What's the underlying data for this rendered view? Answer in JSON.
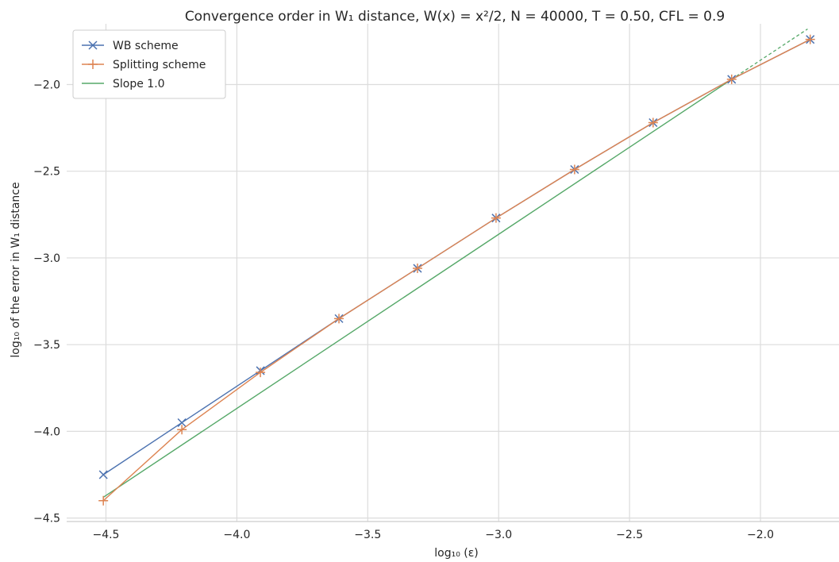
{
  "chart_data": {
    "type": "line",
    "title": "Convergence order in W₁ distance, W(x) = x²/2, N = 40000, T = 0.50, CFL = 0.9",
    "xlabel": "log₁₀ (ε)",
    "ylabel": "log₁₀ of the error in W₁ distance",
    "xlim": [
      -4.65,
      -1.7
    ],
    "ylim": [
      -4.52,
      -1.65
    ],
    "xticks": [
      -4.5,
      -4.0,
      -3.5,
      -3.0,
      -2.5,
      -2.0
    ],
    "xtick_labels": [
      "−4.5",
      "−4.0",
      "−3.5",
      "−3.0",
      "−2.5",
      "−2.0"
    ],
    "yticks": [
      -4.5,
      -4.0,
      -3.5,
      -3.0,
      -2.5,
      -2.0
    ],
    "ytick_labels": [
      "−4.5",
      "−4.0",
      "−3.5",
      "−3.0",
      "−2.5",
      "−2.0"
    ],
    "grid": true,
    "legend_position": "top-left",
    "series": [
      {
        "name": "WB scheme",
        "color": "#4c72b0",
        "marker": "x",
        "x": [
          -4.51,
          -4.21,
          -3.91,
          -3.61,
          -3.31,
          -3.01,
          -2.71,
          -2.41,
          -2.11,
          -1.81
        ],
        "y": [
          -4.25,
          -3.95,
          -3.65,
          -3.35,
          -3.06,
          -2.77,
          -2.49,
          -2.22,
          -1.97,
          -1.74
        ]
      },
      {
        "name": "Splitting scheme",
        "color": "#dd8452",
        "marker": "+",
        "x": [
          -4.51,
          -4.21,
          -3.91,
          -3.61,
          -3.31,
          -3.01,
          -2.71,
          -2.41,
          -2.11,
          -1.81
        ],
        "y": [
          -4.4,
          -3.99,
          -3.66,
          -3.35,
          -3.06,
          -2.77,
          -2.49,
          -2.22,
          -1.97,
          -1.74
        ]
      },
      {
        "name": "Slope 1.0",
        "color": "#55a868",
        "marker": "none",
        "x": [
          -4.51,
          -2.11
        ],
        "y": [
          -4.38,
          -1.97
        ],
        "extension": {
          "x": [
            -2.11,
            -1.82
          ],
          "y": [
            -1.97,
            -1.68
          ],
          "dash": true
        }
      }
    ]
  }
}
